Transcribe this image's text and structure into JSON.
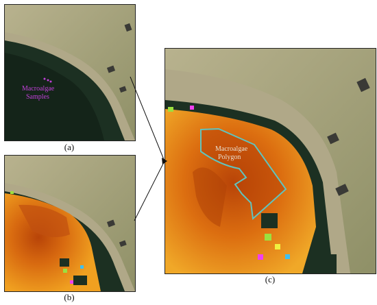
{
  "panels": {
    "a": {
      "caption": "(a)",
      "annotation_line1": "Macroalgae",
      "annotation_line2": "Samples",
      "annotation_color": "#c040d8"
    },
    "b": {
      "caption": "(b)"
    },
    "c": {
      "caption": "(c)",
      "annotation_line1": "Macroalgae",
      "annotation_line2": "Polygon",
      "annotation_color": "#e8e0d0",
      "polygon_color": "#5fc4c0"
    }
  },
  "colors": {
    "water": "#16271c",
    "beach": "#a8a080",
    "land": "#9a9870",
    "heat_orange": "#e07a10",
    "heat_red": "#b84408",
    "heat_yellow": "#f0b020"
  }
}
